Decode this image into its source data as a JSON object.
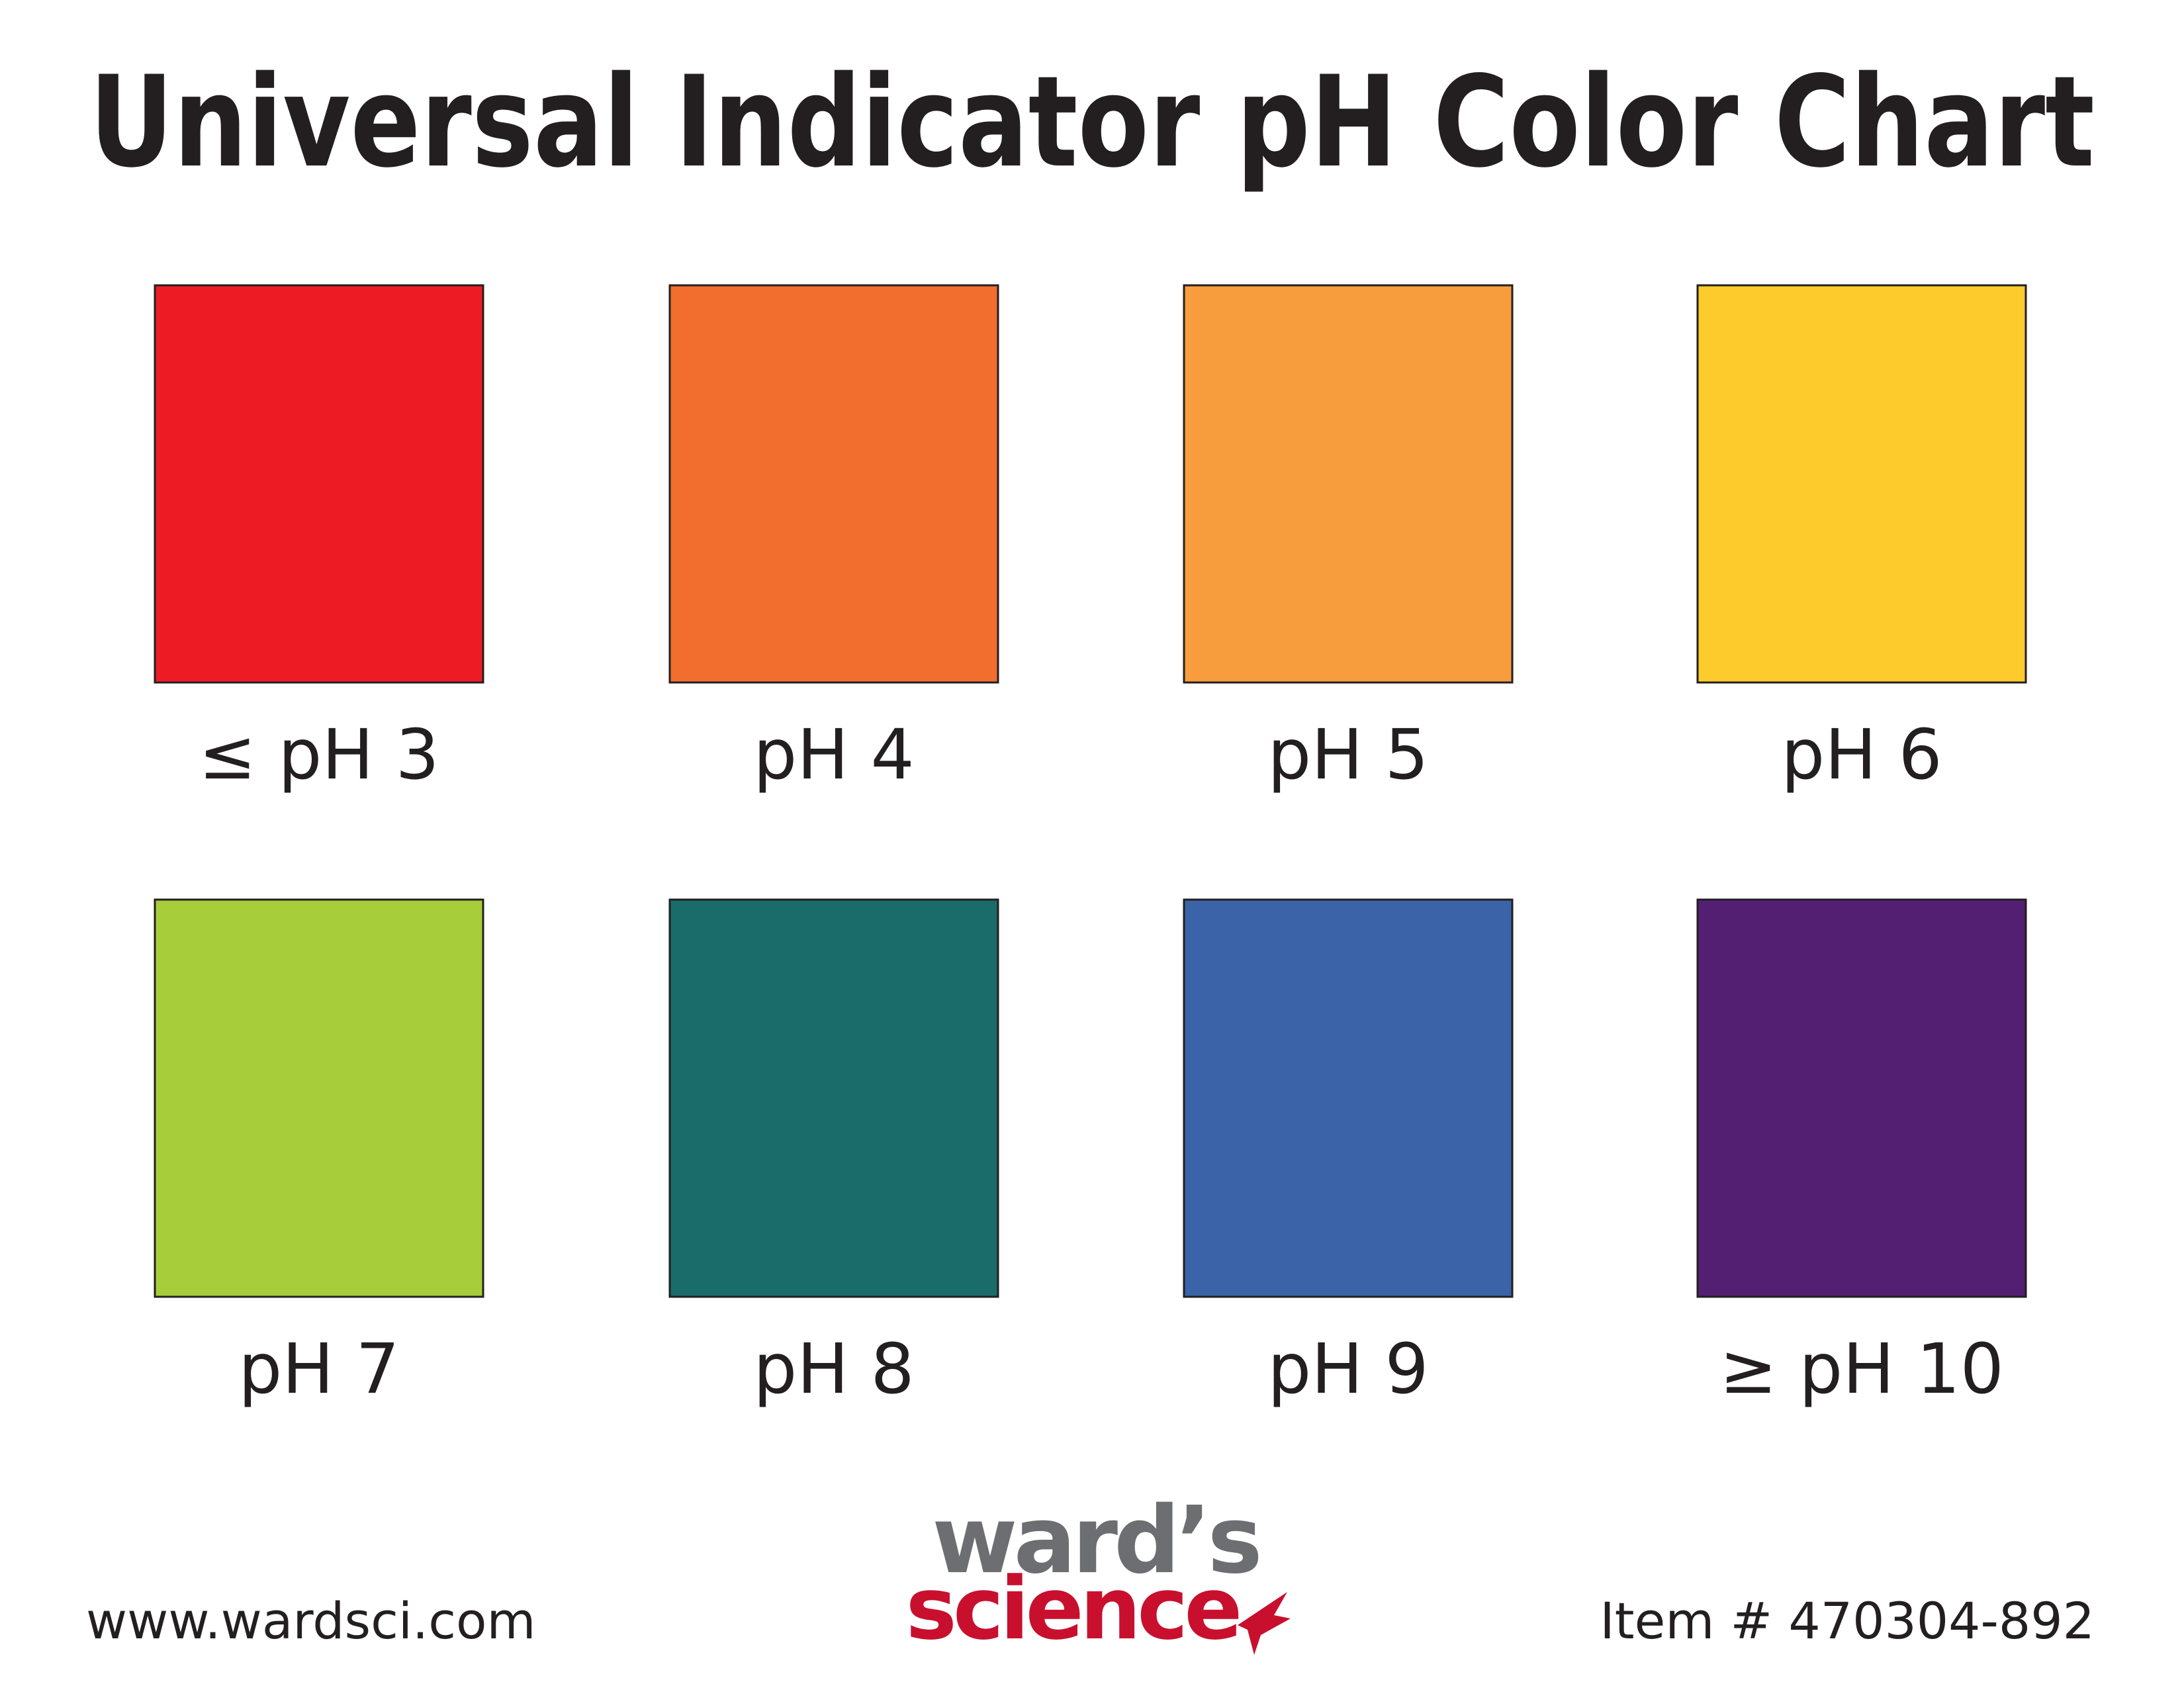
{
  "title": "Universal Indicator pH Color Chart",
  "swatches": [
    {
      "label": "≤ pH 3",
      "color": "#ed1c24"
    },
    {
      "label": "pH 4",
      "color": "#f16e2f"
    },
    {
      "label": "pH 5",
      "color": "#f79d3e"
    },
    {
      "label": "pH 6",
      "color": "#fecb2c"
    },
    {
      "label": "pH 7",
      "color": "#a7cd3a"
    },
    {
      "label": "pH 8",
      "color": "#1a6c6a"
    },
    {
      "label": "pH 9",
      "color": "#3a64a7"
    },
    {
      "label": "≥ pH 10",
      "color": "#521f73"
    }
  ],
  "footer": {
    "website": "www.wardsci.com",
    "logo": {
      "top": "ward’s",
      "bottom": "science"
    },
    "item": "Item # 470304-892"
  }
}
